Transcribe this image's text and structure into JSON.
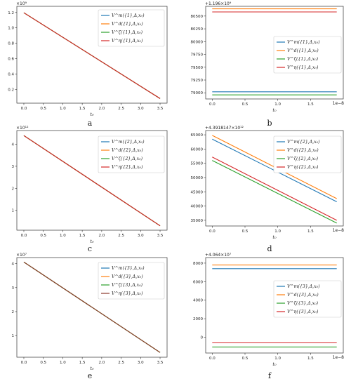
{
  "colors": {
    "series": [
      "#1f77b4",
      "#ff7f0e",
      "#2ca02c",
      "#d62728"
    ],
    "series_panel_e": [
      "#1f77b4",
      "#ff7f0e",
      "#2ca02c",
      "#8c3a2b"
    ],
    "spine": "#333333"
  },
  "chart_data": [
    {
      "panel": "a",
      "type": "line",
      "grid": false,
      "legend": "upper-right",
      "offset_text": "1e9",
      "offset_label": "×10⁹",
      "xlabel": "t₀",
      "ylabel": "",
      "xlim": [
        -0.18,
        3.68
      ],
      "ylim": [
        0.02,
        1.28
      ],
      "xticks": [
        0.0,
        0.5,
        1.0,
        1.5,
        2.0,
        2.5,
        3.0,
        3.5
      ],
      "xticklabels": [
        "0.0",
        "0.5",
        "1.0",
        "1.5",
        "2.0",
        "2.5",
        "3.0",
        "3.5"
      ],
      "yticks": [
        0.2,
        0.4,
        0.6,
        0.8,
        1.0,
        1.2
      ],
      "yticklabels": [
        "0.2",
        "0.4",
        "0.6",
        "0.8",
        "1.0",
        "1.2"
      ],
      "series": [
        {
          "name": "V^m({1},Δ,x₀)",
          "x": [
            0.0,
            3.5
          ],
          "y": [
            1.196,
            0.08
          ]
        },
        {
          "name": "V^d({1},Δ,x₀)",
          "x": [
            0.0,
            3.5
          ],
          "y": [
            1.196,
            0.08
          ]
        },
        {
          "name": "V^ζ({1},Δ,x₀)",
          "x": [
            0.0,
            3.5
          ],
          "y": [
            1.196,
            0.08
          ]
        },
        {
          "name": "V^η({1},Δ,x₀)",
          "x": [
            0.0,
            3.5
          ],
          "y": [
            1.196,
            0.08
          ]
        }
      ]
    },
    {
      "panel": "b",
      "type": "line",
      "grid": false,
      "legend": "center-right",
      "offset_text": "+1.196e9",
      "offset_label": "+1.196×10⁹",
      "x_offset_label": "1e−8",
      "xlabel": "t₀",
      "ylabel": "",
      "xlim": [
        -0.1,
        2.0
      ],
      "ylim": [
        78880,
        80690
      ],
      "xticks": [
        0.0,
        0.5,
        1.0,
        1.5
      ],
      "xticklabels": [
        "0.0",
        "0.5",
        "1.0",
        "1.5"
      ],
      "yticks": [
        79000,
        79250,
        79500,
        79750,
        80000,
        80250,
        80500
      ],
      "yticklabels": [
        "79000",
        "79250",
        "79500",
        "79750",
        "80000",
        "80250",
        "80500"
      ],
      "series": [
        {
          "name": "V^m({1},Δ,x₀)",
          "x": [
            0.0,
            1.9
          ],
          "y": [
            79020,
            79020
          ]
        },
        {
          "name": "V^d({1},Δ,x₀)",
          "x": [
            0.0,
            1.9
          ],
          "y": [
            80640,
            80640
          ]
        },
        {
          "name": "V^ζ({1},Δ,x₀)",
          "x": [
            0.0,
            1.9
          ],
          "y": [
            78960,
            78960
          ]
        },
        {
          "name": "V^η({1},Δ,x₀)",
          "x": [
            0.0,
            1.9
          ],
          "y": [
            80580,
            80580
          ]
        }
      ]
    },
    {
      "panel": "c",
      "type": "line",
      "grid": false,
      "legend": "upper-right",
      "offset_label": "×10¹²",
      "xlabel": "t₀",
      "ylabel": "",
      "xlim": [
        -0.18,
        3.68
      ],
      "ylim": [
        0.1,
        4.62
      ],
      "xticks": [
        0.0,
        0.5,
        1.0,
        1.5,
        2.0,
        2.5,
        3.0,
        3.5
      ],
      "xticklabels": [
        "0.0",
        "0.5",
        "1.0",
        "1.5",
        "2.0",
        "2.5",
        "3.0",
        "3.5"
      ],
      "yticks": [
        1,
        2,
        3,
        4
      ],
      "yticklabels": [
        "1",
        "2",
        "3",
        "4"
      ],
      "series": [
        {
          "name": "V^m({2},Δ,x₀)",
          "x": [
            0.0,
            3.5
          ],
          "y": [
            4.39,
            0.3
          ]
        },
        {
          "name": "V^d({2},Δ,x₀)",
          "x": [
            0.0,
            3.5
          ],
          "y": [
            4.39,
            0.3
          ]
        },
        {
          "name": "V^ζ({2},Δ,x₀)",
          "x": [
            0.0,
            3.5
          ],
          "y": [
            4.39,
            0.3
          ]
        },
        {
          "name": "V^η({2},Δ,x₀)",
          "x": [
            0.0,
            3.5
          ],
          "y": [
            4.39,
            0.3
          ]
        }
      ]
    },
    {
      "panel": "d",
      "type": "line",
      "grid": false,
      "legend": "upper-right",
      "offset_label": "+4.3918147×10¹²",
      "x_offset_label": "1e−8",
      "xlabel": "t₀",
      "ylabel": "",
      "xlim": [
        -0.1,
        2.0
      ],
      "ylim": [
        33000,
        66500
      ],
      "xticks": [
        0.0,
        0.5,
        1.0,
        1.5
      ],
      "xticklabels": [
        "0.0",
        "0.5",
        "1.0",
        "1.5"
      ],
      "yticks": [
        35000,
        40000,
        45000,
        50000,
        55000,
        60000,
        65000
      ],
      "yticklabels": [
        "35000",
        "40000",
        "45000",
        "50000",
        "55000",
        "60000",
        "65000"
      ],
      "series": [
        {
          "name": "V^m({2},Δ,x₀)",
          "x": [
            0.0,
            1.9
          ],
          "y": [
            63500,
            41500
          ]
        },
        {
          "name": "V^d({2},Δ,x₀)",
          "x": [
            0.0,
            1.9
          ],
          "y": [
            64800,
            42600
          ]
        },
        {
          "name": "V^ζ({2},Δ,x₀)",
          "x": [
            0.0,
            1.9
          ],
          "y": [
            56000,
            34000
          ]
        },
        {
          "name": "V^η({2},Δ,x₀)",
          "x": [
            0.0,
            1.9
          ],
          "y": [
            57200,
            35000
          ]
        }
      ]
    },
    {
      "panel": "e",
      "type": "line",
      "grid": false,
      "legend": "upper-right",
      "offset_label": "×10⁷",
      "xlabel": "t₀",
      "ylabel": "",
      "xlim": [
        -0.18,
        3.68
      ],
      "ylim": [
        0.1,
        4.25
      ],
      "xticks": [
        0.0,
        0.5,
        1.0,
        1.5,
        2.0,
        2.5,
        3.0,
        3.5
      ],
      "xticklabels": [
        "0.0",
        "0.5",
        "1.0",
        "1.5",
        "2.0",
        "2.5",
        "3.0",
        "3.5"
      ],
      "yticks": [
        1,
        2,
        3,
        4
      ],
      "yticklabels": [
        "1",
        "2",
        "3",
        "4"
      ],
      "series": [
        {
          "name": "V^m({3},Δ,x₀)",
          "x": [
            0.0,
            3.5
          ],
          "y": [
            4.064,
            0.3
          ]
        },
        {
          "name": "V^d({3},Δ,x₀)",
          "x": [
            0.0,
            3.5
          ],
          "y": [
            4.064,
            0.3
          ]
        },
        {
          "name": "V^ζ({3},Δ,x₀)",
          "x": [
            0.0,
            3.5
          ],
          "y": [
            4.064,
            0.3
          ]
        },
        {
          "name": "V^η({3},Δ,x₀)",
          "x": [
            0.0,
            3.5
          ],
          "y": [
            4.064,
            0.3
          ]
        }
      ]
    },
    {
      "panel": "f",
      "type": "line",
      "grid": false,
      "legend": "center-right",
      "offset_label": "+4.064×10⁷",
      "x_offset_label": "1e−8",
      "xlabel": "t₀",
      "ylabel": "",
      "xlim": [
        -0.1,
        2.0
      ],
      "ylim": [
        -1700,
        8600
      ],
      "xticks": [
        0.0,
        0.5,
        1.0,
        1.5
      ],
      "xticklabels": [
        "0.0",
        "0.5",
        "1.0",
        "1.5"
      ],
      "yticks": [
        0,
        2000,
        4000,
        6000,
        8000
      ],
      "yticklabels": [
        "0",
        "2000",
        "4000",
        "6000",
        "8000"
      ],
      "series": [
        {
          "name": "V^m({3},Δ,x₀)",
          "x": [
            0.0,
            1.9
          ],
          "y": [
            7400,
            7400
          ]
        },
        {
          "name": "V^d({3},Δ,x₀)",
          "x": [
            0.0,
            1.9
          ],
          "y": [
            7800,
            7800
          ]
        },
        {
          "name": "V^ζ({3},Δ,x₀)",
          "x": [
            0.0,
            1.9
          ],
          "y": [
            -1050,
            -1050
          ]
        },
        {
          "name": "V^η({3},Δ,x₀)",
          "x": [
            0.0,
            1.9
          ],
          "y": [
            -600,
            -600
          ]
        }
      ]
    }
  ]
}
